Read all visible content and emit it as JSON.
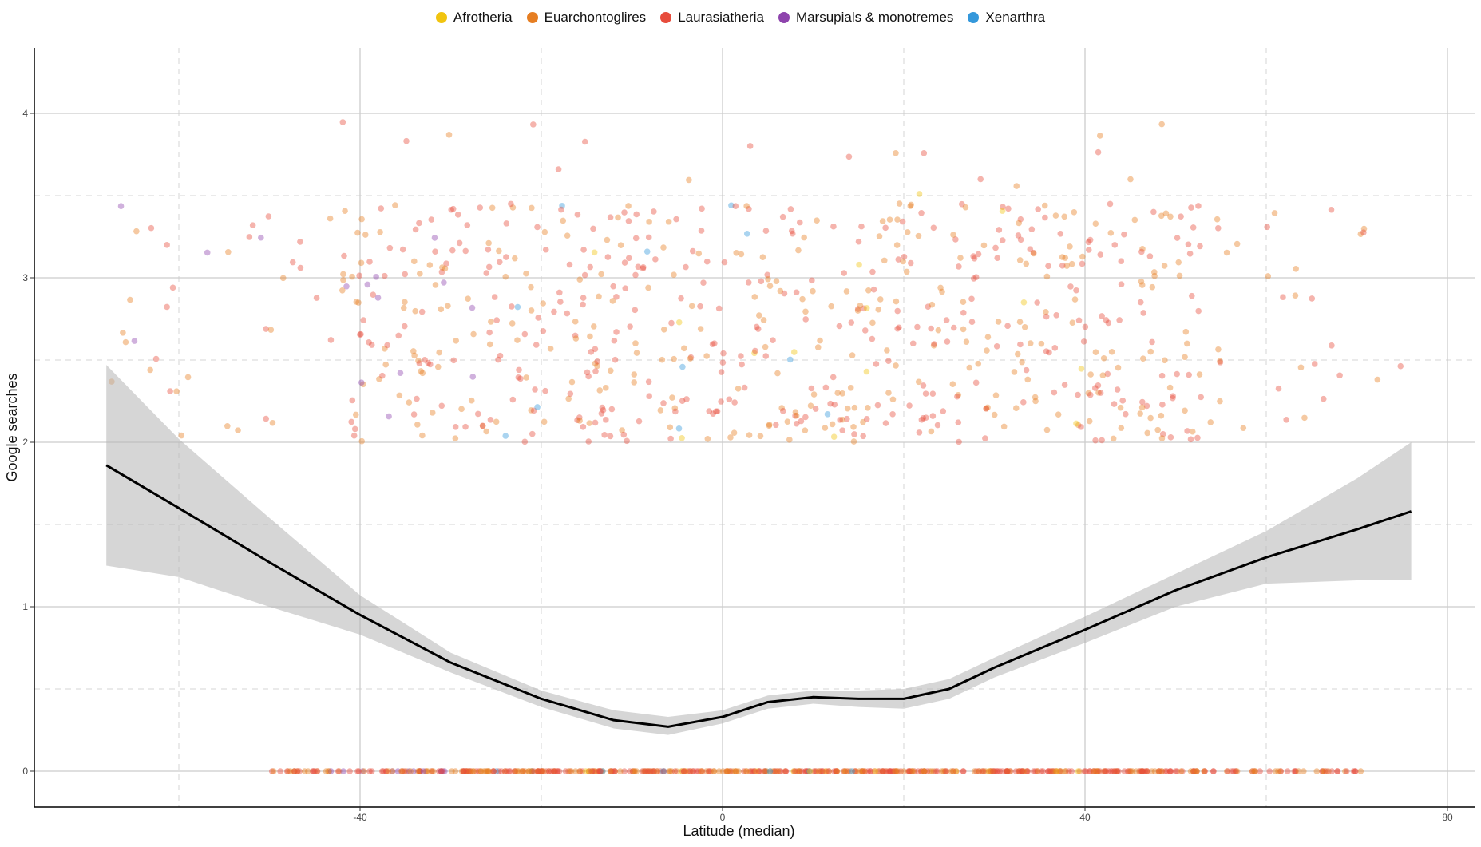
{
  "chart_data": {
    "type": "scatter",
    "title": "",
    "xlabel": "Latitude (median)",
    "ylabel": "Google searches",
    "xlim": [
      -95,
      83
    ],
    "ylim": [
      -0.2,
      4.4
    ],
    "x_ticks": [
      -40,
      0,
      40,
      80
    ],
    "y_ticks": [
      0,
      1,
      2,
      3,
      4
    ],
    "x_minor": [
      -60,
      -20,
      20,
      60
    ],
    "y_minor": [
      0.5,
      1.5,
      2.5,
      3.5
    ],
    "grid": true,
    "legend_position": "top",
    "series": [
      {
        "name": "Afrotheria",
        "color": "#F1C40F"
      },
      {
        "name": "Euarchontoglires",
        "color": "#E67E22"
      },
      {
        "name": "Laurasiatheria",
        "color": "#E74C3C"
      },
      {
        "name": "Marsupials & monotremes",
        "color": "#8E44AD"
      },
      {
        "name": "Xenarthra",
        "color": "#3498DB"
      }
    ],
    "smooth": {
      "x": [
        -68,
        -60,
        -50,
        -40,
        -30,
        -20,
        -12,
        -6,
        0,
        5,
        10,
        15,
        20,
        25,
        30,
        40,
        50,
        60,
        70,
        76
      ],
      "y": [
        1.86,
        1.6,
        1.27,
        0.95,
        0.66,
        0.44,
        0.31,
        0.27,
        0.33,
        0.42,
        0.45,
        0.44,
        0.44,
        0.5,
        0.63,
        0.86,
        1.1,
        1.3,
        1.47,
        1.58
      ],
      "lower": [
        1.25,
        1.18,
        1.0,
        0.83,
        0.6,
        0.39,
        0.26,
        0.22,
        0.29,
        0.38,
        0.41,
        0.39,
        0.38,
        0.44,
        0.57,
        0.78,
        1.0,
        1.14,
        1.16,
        1.16
      ],
      "upper": [
        2.47,
        2.02,
        1.54,
        1.07,
        0.72,
        0.49,
        0.37,
        0.33,
        0.37,
        0.46,
        0.49,
        0.49,
        0.5,
        0.56,
        0.69,
        0.94,
        1.2,
        1.46,
        1.78,
        2.0
      ]
    }
  }
}
